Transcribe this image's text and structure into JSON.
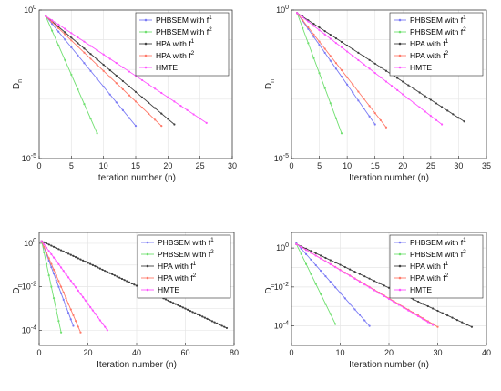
{
  "chart_data": [
    {
      "type": "line",
      "xlabel": "Iteration number (n)",
      "ylabel": "D",
      "ylabel_sub": "n",
      "xlim": [
        0,
        30
      ],
      "xticks": [
        "0",
        "5",
        "10",
        "15",
        "20",
        "25",
        "30"
      ],
      "ylim": [
        -5,
        0
      ],
      "yscale": "log",
      "yticks": [
        {
          "label": "10",
          "exp": "0",
          "value": 0
        },
        {
          "label": "10",
          "exp": "-5",
          "value": -5
        }
      ],
      "grid": true,
      "legend_position": "top-right",
      "series": [
        {
          "name": "PHBSEM with f",
          "sup": "1",
          "color": "#7a7af5",
          "x": [
            1,
            15
          ],
          "y": [
            -0.2,
            -3.9
          ]
        },
        {
          "name": "PHBSEM with f",
          "sup": "2",
          "color": "#6fe06f",
          "x": [
            1,
            9
          ],
          "y": [
            -0.2,
            -4.15
          ]
        },
        {
          "name": "HPA with f",
          "sup": "1",
          "color": "#404040",
          "x": [
            1,
            21
          ],
          "y": [
            -0.2,
            -3.85
          ]
        },
        {
          "name": "HPA with f",
          "sup": "2",
          "color": "#ff7a6a",
          "x": [
            1,
            19
          ],
          "y": [
            -0.2,
            -3.9
          ]
        },
        {
          "name": "HMTE",
          "sup": "",
          "color": "#ff55ff",
          "x": [
            1,
            26
          ],
          "y": [
            -0.2,
            -3.8
          ]
        }
      ]
    },
    {
      "type": "line",
      "xlabel": "Iteration number (n)",
      "ylabel": "D",
      "ylabel_sub": "n",
      "xlim": [
        0,
        35
      ],
      "xticks": [
        "0",
        "5",
        "10",
        "15",
        "20",
        "25",
        "30",
        "35"
      ],
      "ylim": [
        -5,
        0
      ],
      "yscale": "log",
      "yticks": [
        {
          "label": "10",
          "exp": "0",
          "value": 0
        },
        {
          "label": "10",
          "exp": "-5",
          "value": -5
        }
      ],
      "grid": true,
      "legend_position": "top-right",
      "series": [
        {
          "name": "PHBSEM with f",
          "sup": "1",
          "color": "#7a7af5",
          "x": [
            1,
            15
          ],
          "y": [
            -0.1,
            -3.85
          ]
        },
        {
          "name": "PHBSEM with f",
          "sup": "2",
          "color": "#6fe06f",
          "x": [
            1,
            9
          ],
          "y": [
            -0.1,
            -4.15
          ]
        },
        {
          "name": "HPA with f",
          "sup": "1",
          "color": "#404040",
          "x": [
            1,
            31
          ],
          "y": [
            -0.1,
            -3.75
          ]
        },
        {
          "name": "HPA with f",
          "sup": "2",
          "color": "#ff7a6a",
          "x": [
            1,
            17
          ],
          "y": [
            -0.1,
            -3.95
          ]
        },
        {
          "name": "HMTE",
          "sup": "",
          "color": "#ff55ff",
          "x": [
            1,
            27
          ],
          "y": [
            -0.1,
            -3.85
          ]
        }
      ]
    },
    {
      "type": "line",
      "xlabel": "Iteration number (n)",
      "ylabel": "D",
      "ylabel_sub": "n",
      "xlim": [
        0,
        80
      ],
      "xticks": [
        "0",
        "20",
        "40",
        "60",
        "80"
      ],
      "ylim": [
        -4.7,
        0.5
      ],
      "yscale": "log",
      "yticks": [
        {
          "label": "10",
          "exp": "0",
          "value": 0
        },
        {
          "label": "10",
          "exp": "-2",
          "value": -2
        },
        {
          "label": "10",
          "exp": "-4",
          "value": -4
        }
      ],
      "grid": true,
      "legend_position": "top-right",
      "series": [
        {
          "name": "PHBSEM with f",
          "sup": "1",
          "color": "#7a7af5",
          "x": [
            1,
            14
          ],
          "y": [
            0.1,
            -3.8
          ]
        },
        {
          "name": "PHBSEM with f",
          "sup": "2",
          "color": "#6fe06f",
          "x": [
            1,
            9
          ],
          "y": [
            0.1,
            -4.1
          ]
        },
        {
          "name": "HPA with f",
          "sup": "1",
          "color": "#404040",
          "x": [
            1,
            77
          ],
          "y": [
            0.1,
            -3.9
          ]
        },
        {
          "name": "HPA with f",
          "sup": "2",
          "color": "#ff7a6a",
          "x": [
            1,
            17
          ],
          "y": [
            0.1,
            -4.1
          ]
        },
        {
          "name": "HMTE",
          "sup": "",
          "color": "#ff55ff",
          "x": [
            1,
            28
          ],
          "y": [
            0.1,
            -4.0
          ]
        }
      ]
    },
    {
      "type": "line",
      "xlabel": "Iteration number (n)",
      "ylabel": "D",
      "ylabel_sub": "n",
      "xlim": [
        0,
        40
      ],
      "xticks": [
        "0",
        "10",
        "20",
        "30",
        "40"
      ],
      "ylim": [
        -5,
        0.8
      ],
      "yscale": "log",
      "yticks": [
        {
          "label": "10",
          "exp": "0",
          "value": 0
        },
        {
          "label": "10",
          "exp": "-2",
          "value": -2
        },
        {
          "label": "10",
          "exp": "-4",
          "value": -4
        }
      ],
      "grid": true,
      "legend_position": "top-right",
      "series": [
        {
          "name": "PHBSEM with f",
          "sup": "1",
          "color": "#7a7af5",
          "x": [
            1,
            16
          ],
          "y": [
            0.25,
            -4.0
          ]
        },
        {
          "name": "PHBSEM with f",
          "sup": "2",
          "color": "#6fe06f",
          "x": [
            1,
            9
          ],
          "y": [
            0.2,
            -3.9
          ]
        },
        {
          "name": "HPA with f",
          "sup": "1",
          "color": "#404040",
          "x": [
            1,
            37
          ],
          "y": [
            0.2,
            -4.05
          ]
        },
        {
          "name": "HPA with f",
          "sup": "2",
          "color": "#ff7a6a",
          "x": [
            1,
            30
          ],
          "y": [
            0.2,
            -4.05
          ]
        },
        {
          "name": "HMTE",
          "sup": "",
          "color": "#ff55ff",
          "x": [
            1,
            29
          ],
          "y": [
            0.2,
            -3.95
          ]
        }
      ]
    }
  ]
}
